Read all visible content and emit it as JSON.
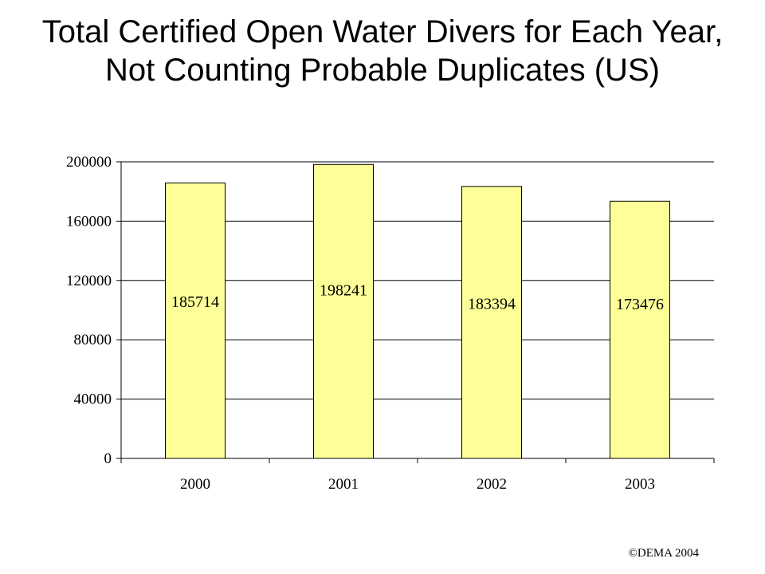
{
  "title": "Total Certified Open Water Divers for Each Year, Not Counting Probable Duplicates (US)",
  "footer": "©DEMA 2004",
  "chart_data": {
    "type": "bar",
    "title": "Total Certified Open Water Divers for Each Year, Not Counting Probable Duplicates (US)",
    "categories": [
      "2000",
      "2001",
      "2002",
      "2003"
    ],
    "values": [
      185714,
      198241,
      183394,
      173476
    ],
    "data_labels": [
      "185714",
      "198241",
      "183394",
      "173476"
    ],
    "xlabel": "",
    "ylabel": "",
    "ylim": [
      0,
      200000
    ],
    "yticks": [
      0,
      40000,
      80000,
      120000,
      160000,
      200000
    ],
    "ytick_labels": [
      "0",
      "40000",
      "80000",
      "120000",
      "160000",
      "200000"
    ],
    "grid": true,
    "legend": "none",
    "colors": {
      "bar_fill": "#ffff99",
      "bar_stroke": "#000000",
      "grid": "#000000"
    }
  }
}
